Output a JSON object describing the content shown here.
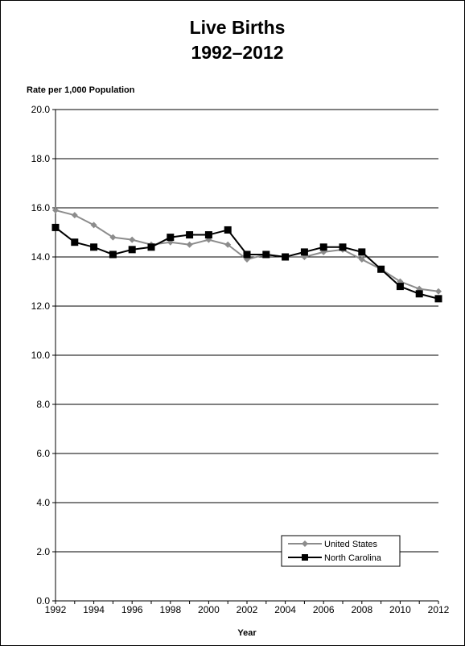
{
  "chart_data": {
    "type": "line",
    "title_line1": "Live Births",
    "title_line2": "1992–2012",
    "ylabel": "Rate per 1,000 Population",
    "xlabel": "Year",
    "ylim": [
      0,
      20
    ],
    "xlim": [
      1992,
      2012
    ],
    "y_ticks": [
      "0.0",
      "2.0",
      "4.0",
      "6.0",
      "8.0",
      "10.0",
      "12.0",
      "14.0",
      "16.0",
      "18.0",
      "20.0"
    ],
    "x_tick_labels": [
      "1992",
      "1994",
      "1996",
      "1998",
      "2000",
      "2002",
      "2004",
      "2006",
      "2008",
      "2010",
      "2012"
    ],
    "grid": "horizontal",
    "legend_position": "bottom-right",
    "x": [
      1992,
      1993,
      1994,
      1995,
      1996,
      1997,
      1998,
      1999,
      2000,
      2001,
      2002,
      2003,
      2004,
      2005,
      2006,
      2007,
      2008,
      2009,
      2010,
      2011,
      2012
    ],
    "series": [
      {
        "name": "United States",
        "color": "#8c8c8c",
        "marker": "diamond",
        "values": [
          15.9,
          15.7,
          15.3,
          14.8,
          14.7,
          14.5,
          14.6,
          14.5,
          14.7,
          14.5,
          13.9,
          14.1,
          14.0,
          14.0,
          14.2,
          14.3,
          13.9,
          13.5,
          13.0,
          12.7,
          12.6
        ]
      },
      {
        "name": "North Carolina",
        "color": "#000000",
        "marker": "square",
        "values": [
          15.2,
          14.6,
          14.4,
          14.1,
          14.3,
          14.4,
          14.8,
          14.9,
          14.9,
          15.1,
          14.1,
          14.1,
          14.0,
          14.2,
          14.4,
          14.4,
          14.2,
          13.5,
          12.8,
          12.5,
          12.3
        ]
      }
    ]
  }
}
